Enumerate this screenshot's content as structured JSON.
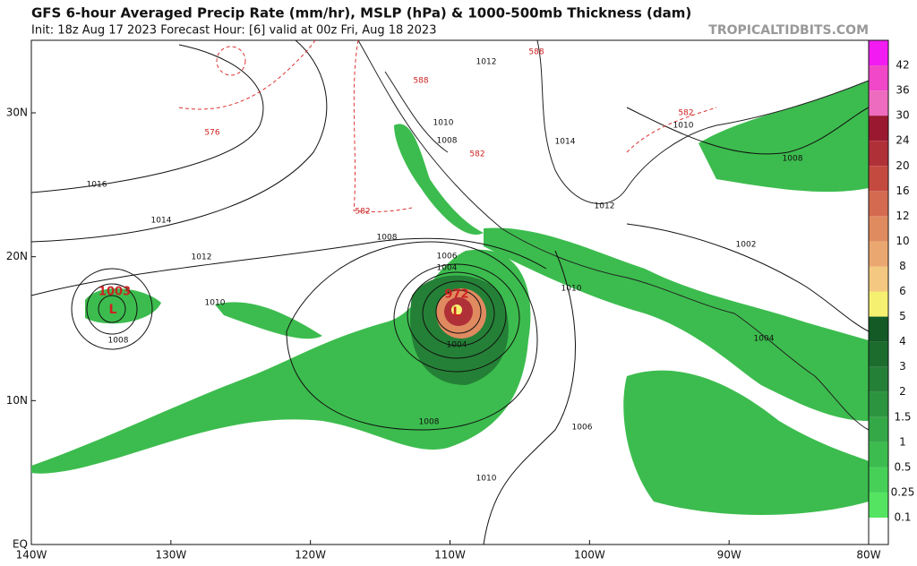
{
  "header": {
    "title": "GFS 6-hour Averaged Precip Rate (mm/hr), MSLP (hPa) & 1000-500mb Thickness (dam)",
    "subtitle": "Init: 18z Aug 17 2023   Forecast Hour: [6]   valid at 00z Fri, Aug 18 2023",
    "watermark": "TROPICALTIDBITS.COM"
  },
  "map": {
    "lat_labels": [
      "30N",
      "20N",
      "10N",
      "EQ"
    ],
    "lon_labels": [
      "140W",
      "130W",
      "120W",
      "110W",
      "100W",
      "90W",
      "80W"
    ],
    "contour_labels": [
      "1016",
      "1014",
      "1012",
      "1010",
      "1008",
      "1006",
      "1004",
      "1002",
      "1008",
      "1010",
      "1010",
      "1012",
      "1014",
      "1012",
      "1010",
      "1008",
      "1006",
      "1004",
      "1008",
      "1004",
      "576",
      "582",
      "582",
      "588",
      "588",
      "582",
      "1003",
      "L",
      "972",
      "L",
      "1008",
      "1010"
    ]
  },
  "colorbar": {
    "labels": [
      "42",
      "36",
      "30",
      "24",
      "20",
      "16",
      "12",
      "10",
      "8",
      "6",
      "5",
      "4",
      "3",
      "2",
      "1.5",
      "1",
      "0.5",
      "0.25",
      "0.1"
    ],
    "colors": [
      "#f21cf2",
      "#f048c8",
      "#ee6cc0",
      "#9a1830",
      "#b03038",
      "#c44a40",
      "#d46a50",
      "#e08a60",
      "#eaa870",
      "#f4c880",
      "#f6f070",
      "#145a26",
      "#1c6c2e",
      "#248036",
      "#2c943e",
      "#34a846",
      "#3cbc4e",
      "#46d058",
      "#54e462",
      "#ffffff"
    ]
  }
}
